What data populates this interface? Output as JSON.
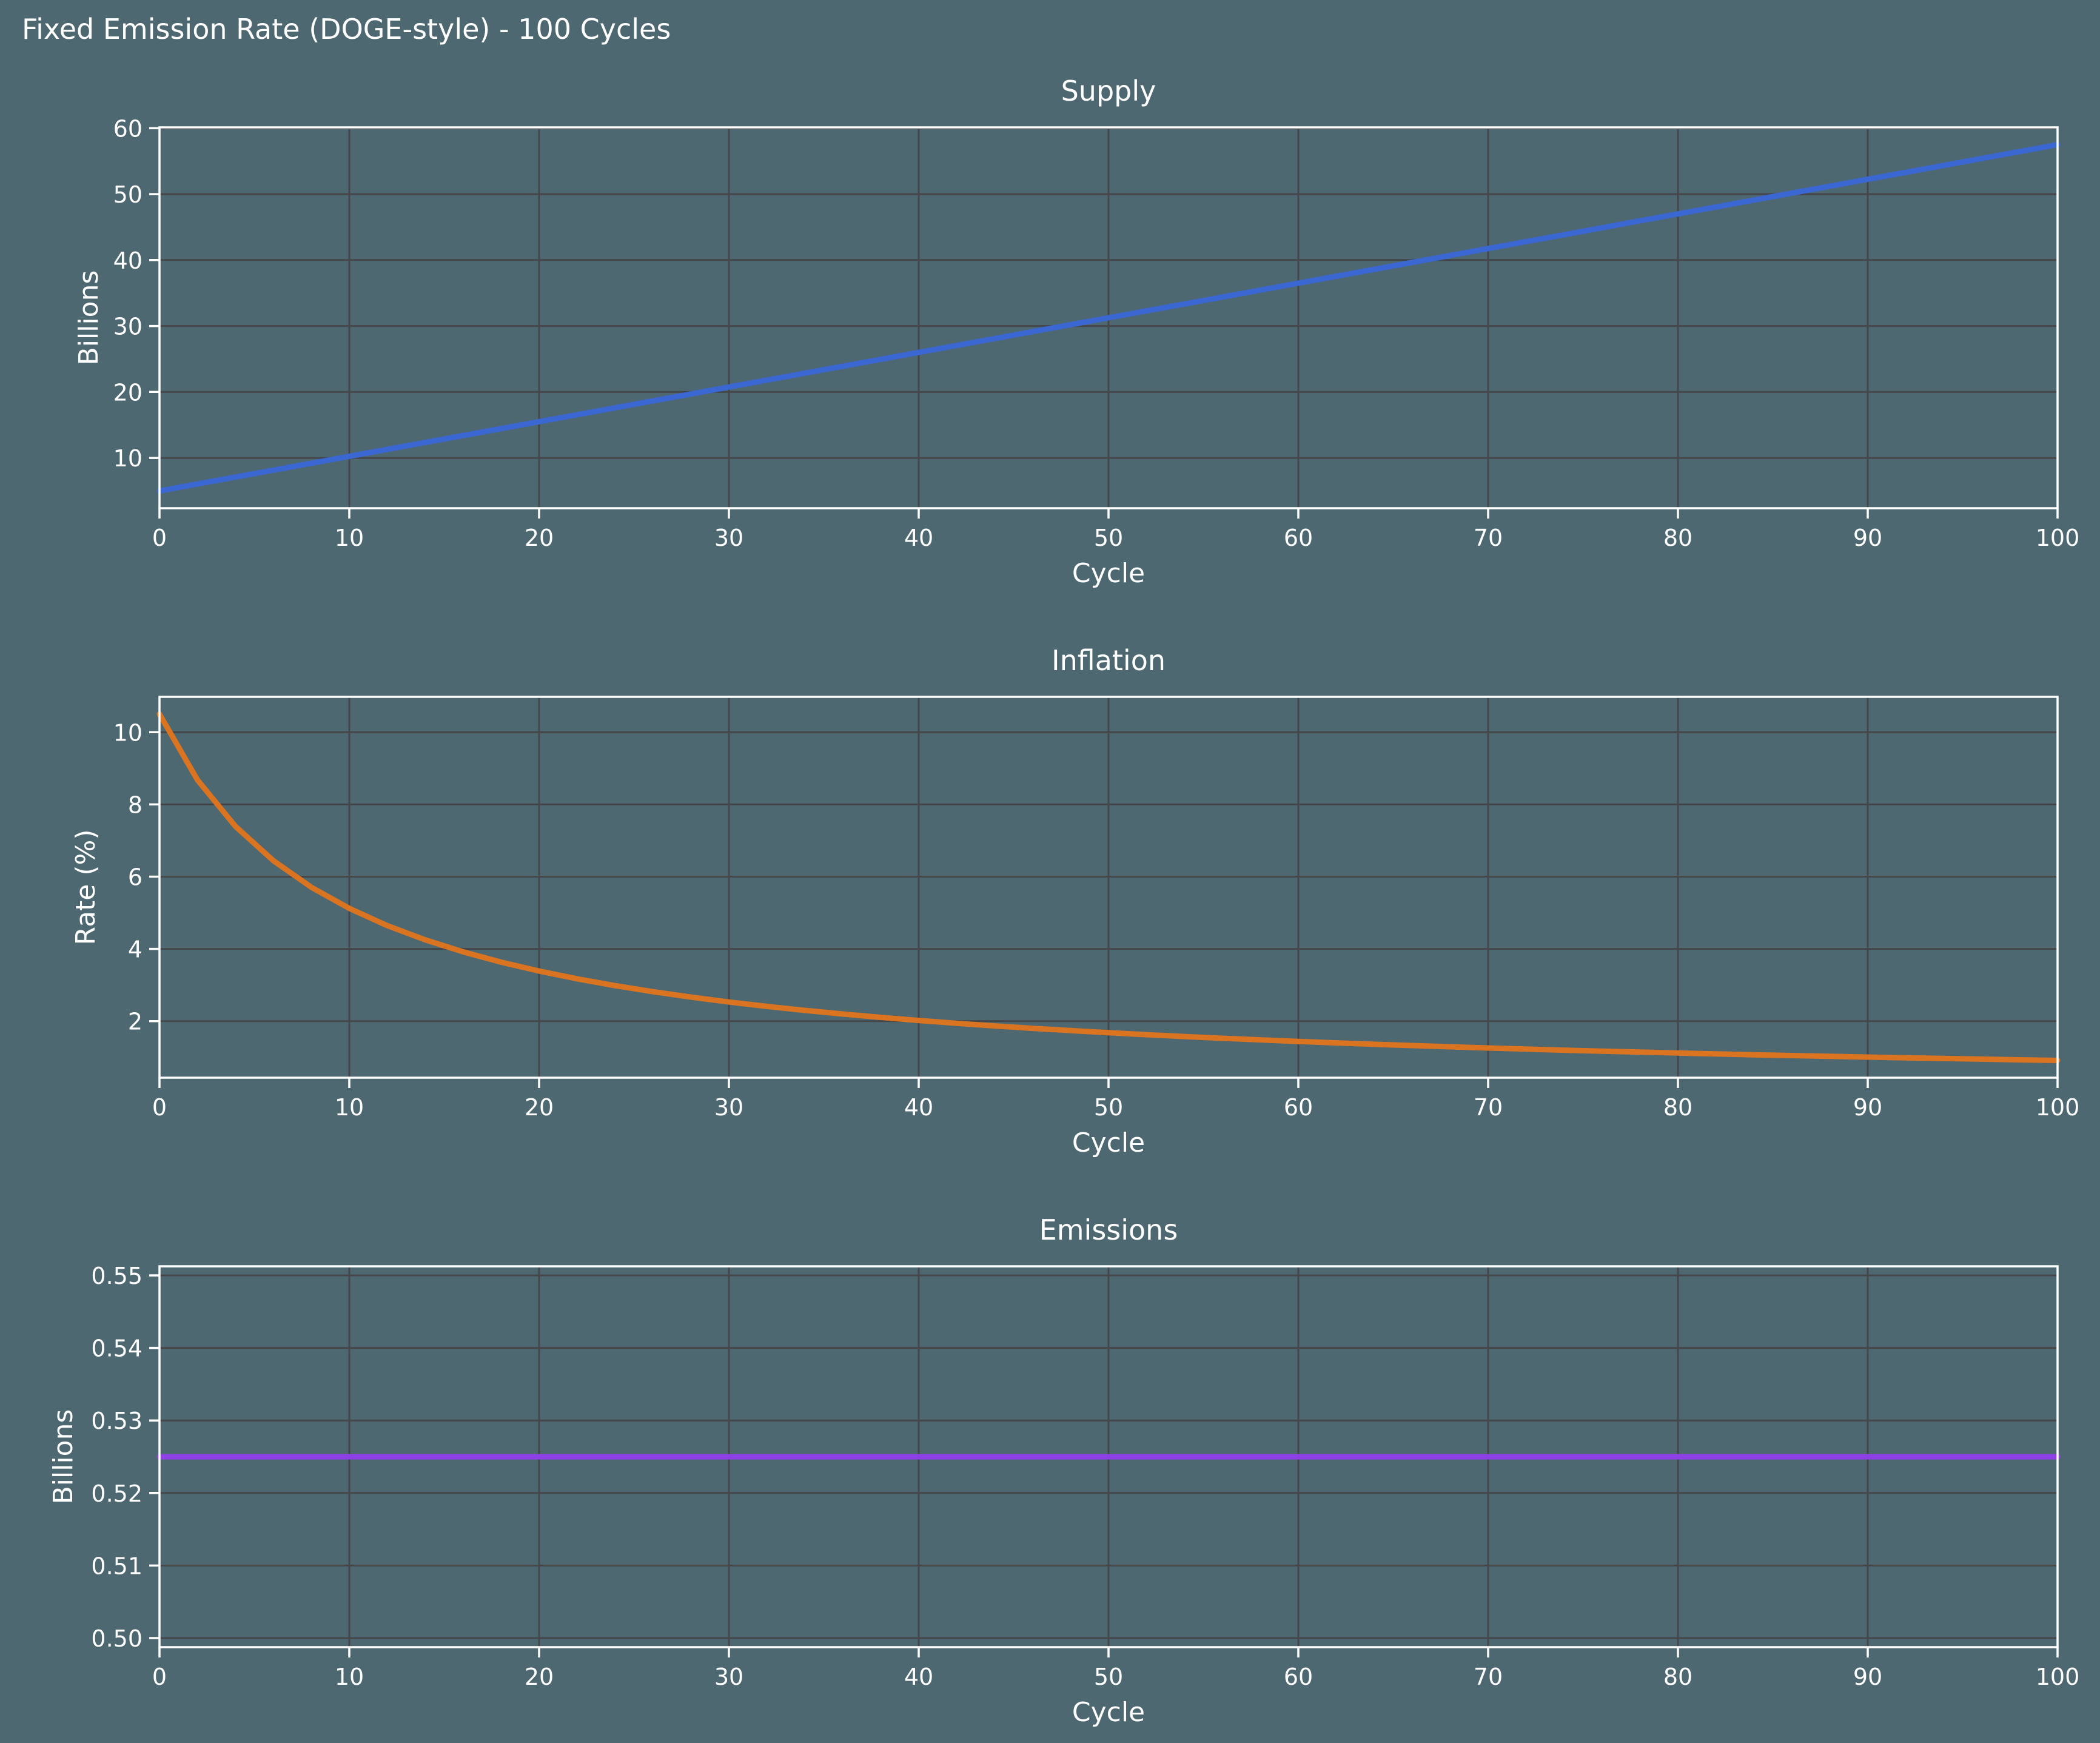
{
  "figure_title": "Fixed Emission Rate (DOGE-style) - 100 Cycles",
  "colors": {
    "background": "#4D6871",
    "grid": "#45464A",
    "axis": "#FFFFFF",
    "text": "#FFFFFF",
    "supply_line": "#3A67D2",
    "inflation_line": "#DB7420",
    "emissions_line": "#8E3FE6"
  },
  "chart_data": [
    {
      "type": "line",
      "title": "Supply",
      "xlabel": "Cycle",
      "ylabel": "Billions",
      "grid": true,
      "legend": "none",
      "xlim": [
        0,
        100
      ],
      "ylim": [
        2.375,
        60.125
      ],
      "xticks": {
        "values": [
          0,
          10,
          20,
          30,
          40,
          50,
          60,
          70,
          80,
          90,
          100
        ],
        "labels": [
          "0",
          "10",
          "20",
          "30",
          "40",
          "50",
          "60",
          "70",
          "80",
          "90",
          "100"
        ]
      },
      "yticks": {
        "values": [
          10,
          20,
          30,
          40,
          50,
          60
        ],
        "labels": [
          "10",
          "20",
          "30",
          "40",
          "50",
          "60"
        ]
      },
      "series": [
        {
          "name": "Supply",
          "color": "#3A67D2",
          "x": [
            0,
            5,
            10,
            15,
            20,
            25,
            30,
            35,
            40,
            45,
            50,
            55,
            60,
            65,
            70,
            75,
            80,
            85,
            90,
            95,
            100
          ],
          "y": [
            5,
            7.625,
            10.25,
            12.875,
            15.5,
            18.125,
            20.75,
            23.375,
            26,
            28.625,
            31.25,
            33.875,
            36.5,
            39.125,
            41.75,
            44.375,
            47,
            49.625,
            52.25,
            54.875,
            57.5
          ]
        }
      ]
    },
    {
      "type": "line",
      "title": "Inflation",
      "xlabel": "Cycle",
      "ylabel": "Rate (%)",
      "grid": true,
      "legend": "none",
      "xlim": [
        0,
        100
      ],
      "ylim": [
        0.434,
        10.979
      ],
      "xticks": {
        "values": [
          0,
          10,
          20,
          30,
          40,
          50,
          60,
          70,
          80,
          90,
          100
        ],
        "labels": [
          "0",
          "10",
          "20",
          "30",
          "40",
          "50",
          "60",
          "70",
          "80",
          "90",
          "100"
        ]
      },
      "yticks": {
        "values": [
          2,
          4,
          6,
          8,
          10
        ],
        "labels": [
          "2",
          "4",
          "6",
          "8",
          "10"
        ]
      },
      "series": [
        {
          "name": "Inflation",
          "color": "#DB7420",
          "x": [
            0,
            2,
            4,
            6,
            8,
            10,
            12,
            14,
            16,
            18,
            20,
            22,
            24,
            26,
            28,
            30,
            32,
            34,
            36,
            38,
            40,
            42,
            44,
            46,
            48,
            50,
            52,
            54,
            56,
            58,
            60,
            62,
            64,
            66,
            68,
            70,
            72,
            74,
            76,
            78,
            80,
            82,
            84,
            86,
            88,
            90,
            92,
            94,
            96,
            98,
            100
          ],
          "y": [
            10.5,
            8.678,
            7.394,
            6.442,
            5.707,
            5.122,
            4.646,
            4.251,
            3.918,
            3.633,
            3.387,
            3.172,
            2.983,
            2.815,
            2.665,
            2.53,
            2.408,
            2.298,
            2.197,
            2.104,
            2.019,
            1.941,
            1.868,
            1.801,
            1.738,
            1.68,
            1.625,
            1.574,
            1.526,
            1.481,
            1.438,
            1.398,
            1.36,
            1.324,
            1.29,
            1.257,
            1.227,
            1.197,
            1.169,
            1.143,
            1.117,
            1.093,
            1.069,
            1.047,
            1.025,
            1.005,
            0.985,
            0.966,
            0.948,
            0.93,
            0.913
          ]
        }
      ]
    },
    {
      "type": "line",
      "title": "Emissions",
      "xlabel": "Cycle",
      "ylabel": "Billions",
      "grid": true,
      "legend": "none",
      "xlim": [
        0,
        100
      ],
      "ylim": [
        0.49875,
        0.55125
      ],
      "xticks": {
        "values": [
          0,
          10,
          20,
          30,
          40,
          50,
          60,
          70,
          80,
          90,
          100
        ],
        "labels": [
          "0",
          "10",
          "20",
          "30",
          "40",
          "50",
          "60",
          "70",
          "80",
          "90",
          "100"
        ]
      },
      "yticks": {
        "values": [
          0.5,
          0.51,
          0.52,
          0.53,
          0.54,
          0.55
        ],
        "labels": [
          "0.50",
          "0.51",
          "0.52",
          "0.53",
          "0.54",
          "0.55"
        ]
      },
      "series": [
        {
          "name": "Emissions",
          "color": "#8E3FE6",
          "x": [
            0,
            100
          ],
          "y": [
            0.525,
            0.525
          ]
        }
      ]
    }
  ]
}
